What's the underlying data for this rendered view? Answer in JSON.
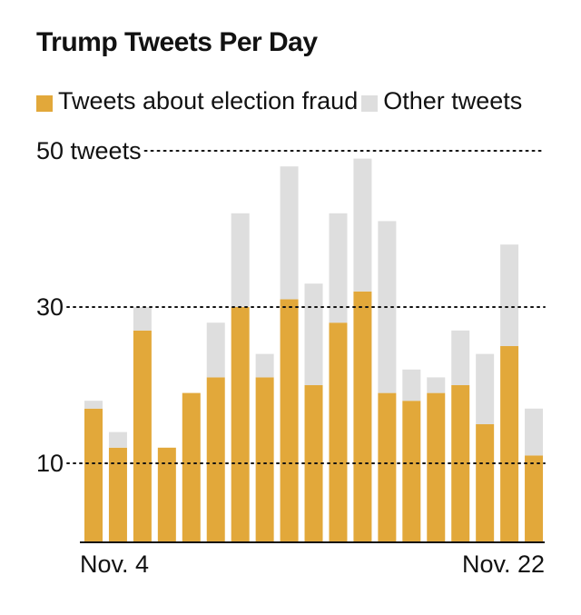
{
  "chart_data": {
    "type": "bar",
    "stacked": true,
    "title": "Trump Tweets Per Day",
    "xlabel": "",
    "ylabel": "",
    "ylim": [
      0,
      50
    ],
    "y_ticks": [
      {
        "value": 50,
        "label": "50 tweets"
      },
      {
        "value": 30,
        "label": "30"
      },
      {
        "value": 10,
        "label": "10"
      }
    ],
    "x_tick_labels": [
      {
        "index": 0,
        "label": "Nov. 4"
      },
      {
        "index": 18,
        "label": "Nov. 22"
      }
    ],
    "grid": "dotted-horizontal",
    "legend_position": "top",
    "series": [
      {
        "name": "Tweets about election fraud",
        "color": "#e2a83a",
        "values": [
          17,
          12,
          27,
          12,
          19,
          21,
          30,
          21,
          31,
          20,
          28,
          32,
          19,
          18,
          19,
          20,
          15,
          25,
          11
        ]
      },
      {
        "name": "Other tweets",
        "color": "#dedede",
        "values": [
          1,
          2,
          3,
          0,
          0,
          7,
          12,
          3,
          17,
          13,
          14,
          17,
          22,
          4,
          2,
          7,
          9,
          13,
          6
        ]
      }
    ]
  }
}
